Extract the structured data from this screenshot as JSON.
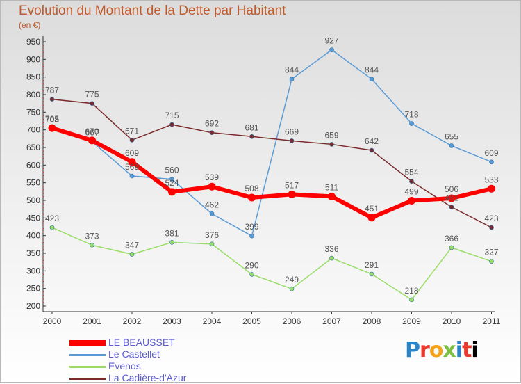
{
  "title": "Evolution du Montant de la Dette par Habitant",
  "unit": "(en €)",
  "logo": [
    "P",
    "r",
    "o",
    "x",
    "i",
    "t",
    "i"
  ],
  "colors": {
    "le_beausset": "#ff0000",
    "le_castellet": "#5b9bd5",
    "evenos": "#99dd66",
    "la_cadiere": "#7a2a2a",
    "title": "#c05a2c",
    "legend_text": "#5a5ad2"
  },
  "chart_data": {
    "type": "line",
    "x": [
      "2000",
      "2001",
      "2002",
      "2003",
      "2004",
      "2005",
      "2006",
      "2007",
      "2008",
      "2009",
      "2010",
      "2011"
    ],
    "ylim": [
      200,
      950
    ],
    "yticks": [
      200,
      250,
      300,
      350,
      400,
      450,
      500,
      550,
      600,
      650,
      700,
      750,
      800,
      850,
      900,
      950
    ],
    "grid": false,
    "legend_position": "bottom-left",
    "series": [
      {
        "name": "LE BEAUSSET",
        "color": "#ff0000",
        "width": 6,
        "labels": [
          "705",
          "670",
          "609",
          "524",
          "539",
          "508",
          "517",
          "511",
          "451",
          "499",
          "506",
          "533"
        ],
        "values": [
          705,
          670,
          609,
          524,
          539,
          508,
          517,
          511,
          451,
          499,
          506,
          533
        ]
      },
      {
        "name": "Le Castellet",
        "color": "#5b9bd5",
        "width": 1.5,
        "labels": [
          "703",
          "667",
          "569",
          "560",
          "462",
          "399",
          "",
          "",
          "",
          "",
          "",
          ""
        ],
        "values": [
          703,
          667,
          569,
          560,
          462,
          399,
          844,
          927,
          844,
          718,
          655,
          609
        ]
      },
      {
        "name": "Evenos",
        "color": "#99dd66",
        "width": 1.5,
        "labels": [
          "423",
          "373",
          "347",
          "381",
          "376",
          "290",
          "249",
          "336",
          "291",
          "218",
          "366",
          "327"
        ],
        "values": [
          423,
          373,
          347,
          381,
          376,
          290,
          249,
          336,
          291,
          218,
          366,
          327
        ]
      },
      {
        "name": "La Cadière-d'Azur",
        "color": "#7a2a2a",
        "width": 1.5,
        "labels": [
          "787",
          "775",
          "671",
          "715",
          "692",
          "681",
          "669",
          "659",
          "642",
          "554",
          "481",
          "423"
        ],
        "values": [
          787,
          775,
          671,
          715,
          692,
          681,
          669,
          659,
          642,
          554,
          481,
          423
        ]
      }
    ],
    "extra_labels": [
      {
        "series": "Le Castellet",
        "index": 6,
        "text": "844"
      },
      {
        "series": "Le Castellet",
        "index": 7,
        "text": "927"
      },
      {
        "series": "Le Castellet",
        "index": 8,
        "text": "844"
      },
      {
        "series": "Le Castellet",
        "index": 9,
        "text": "718"
      },
      {
        "series": "Le Castellet",
        "index": 10,
        "text": "655"
      },
      {
        "series": "Le Castellet",
        "index": 11,
        "text": "609"
      }
    ]
  }
}
